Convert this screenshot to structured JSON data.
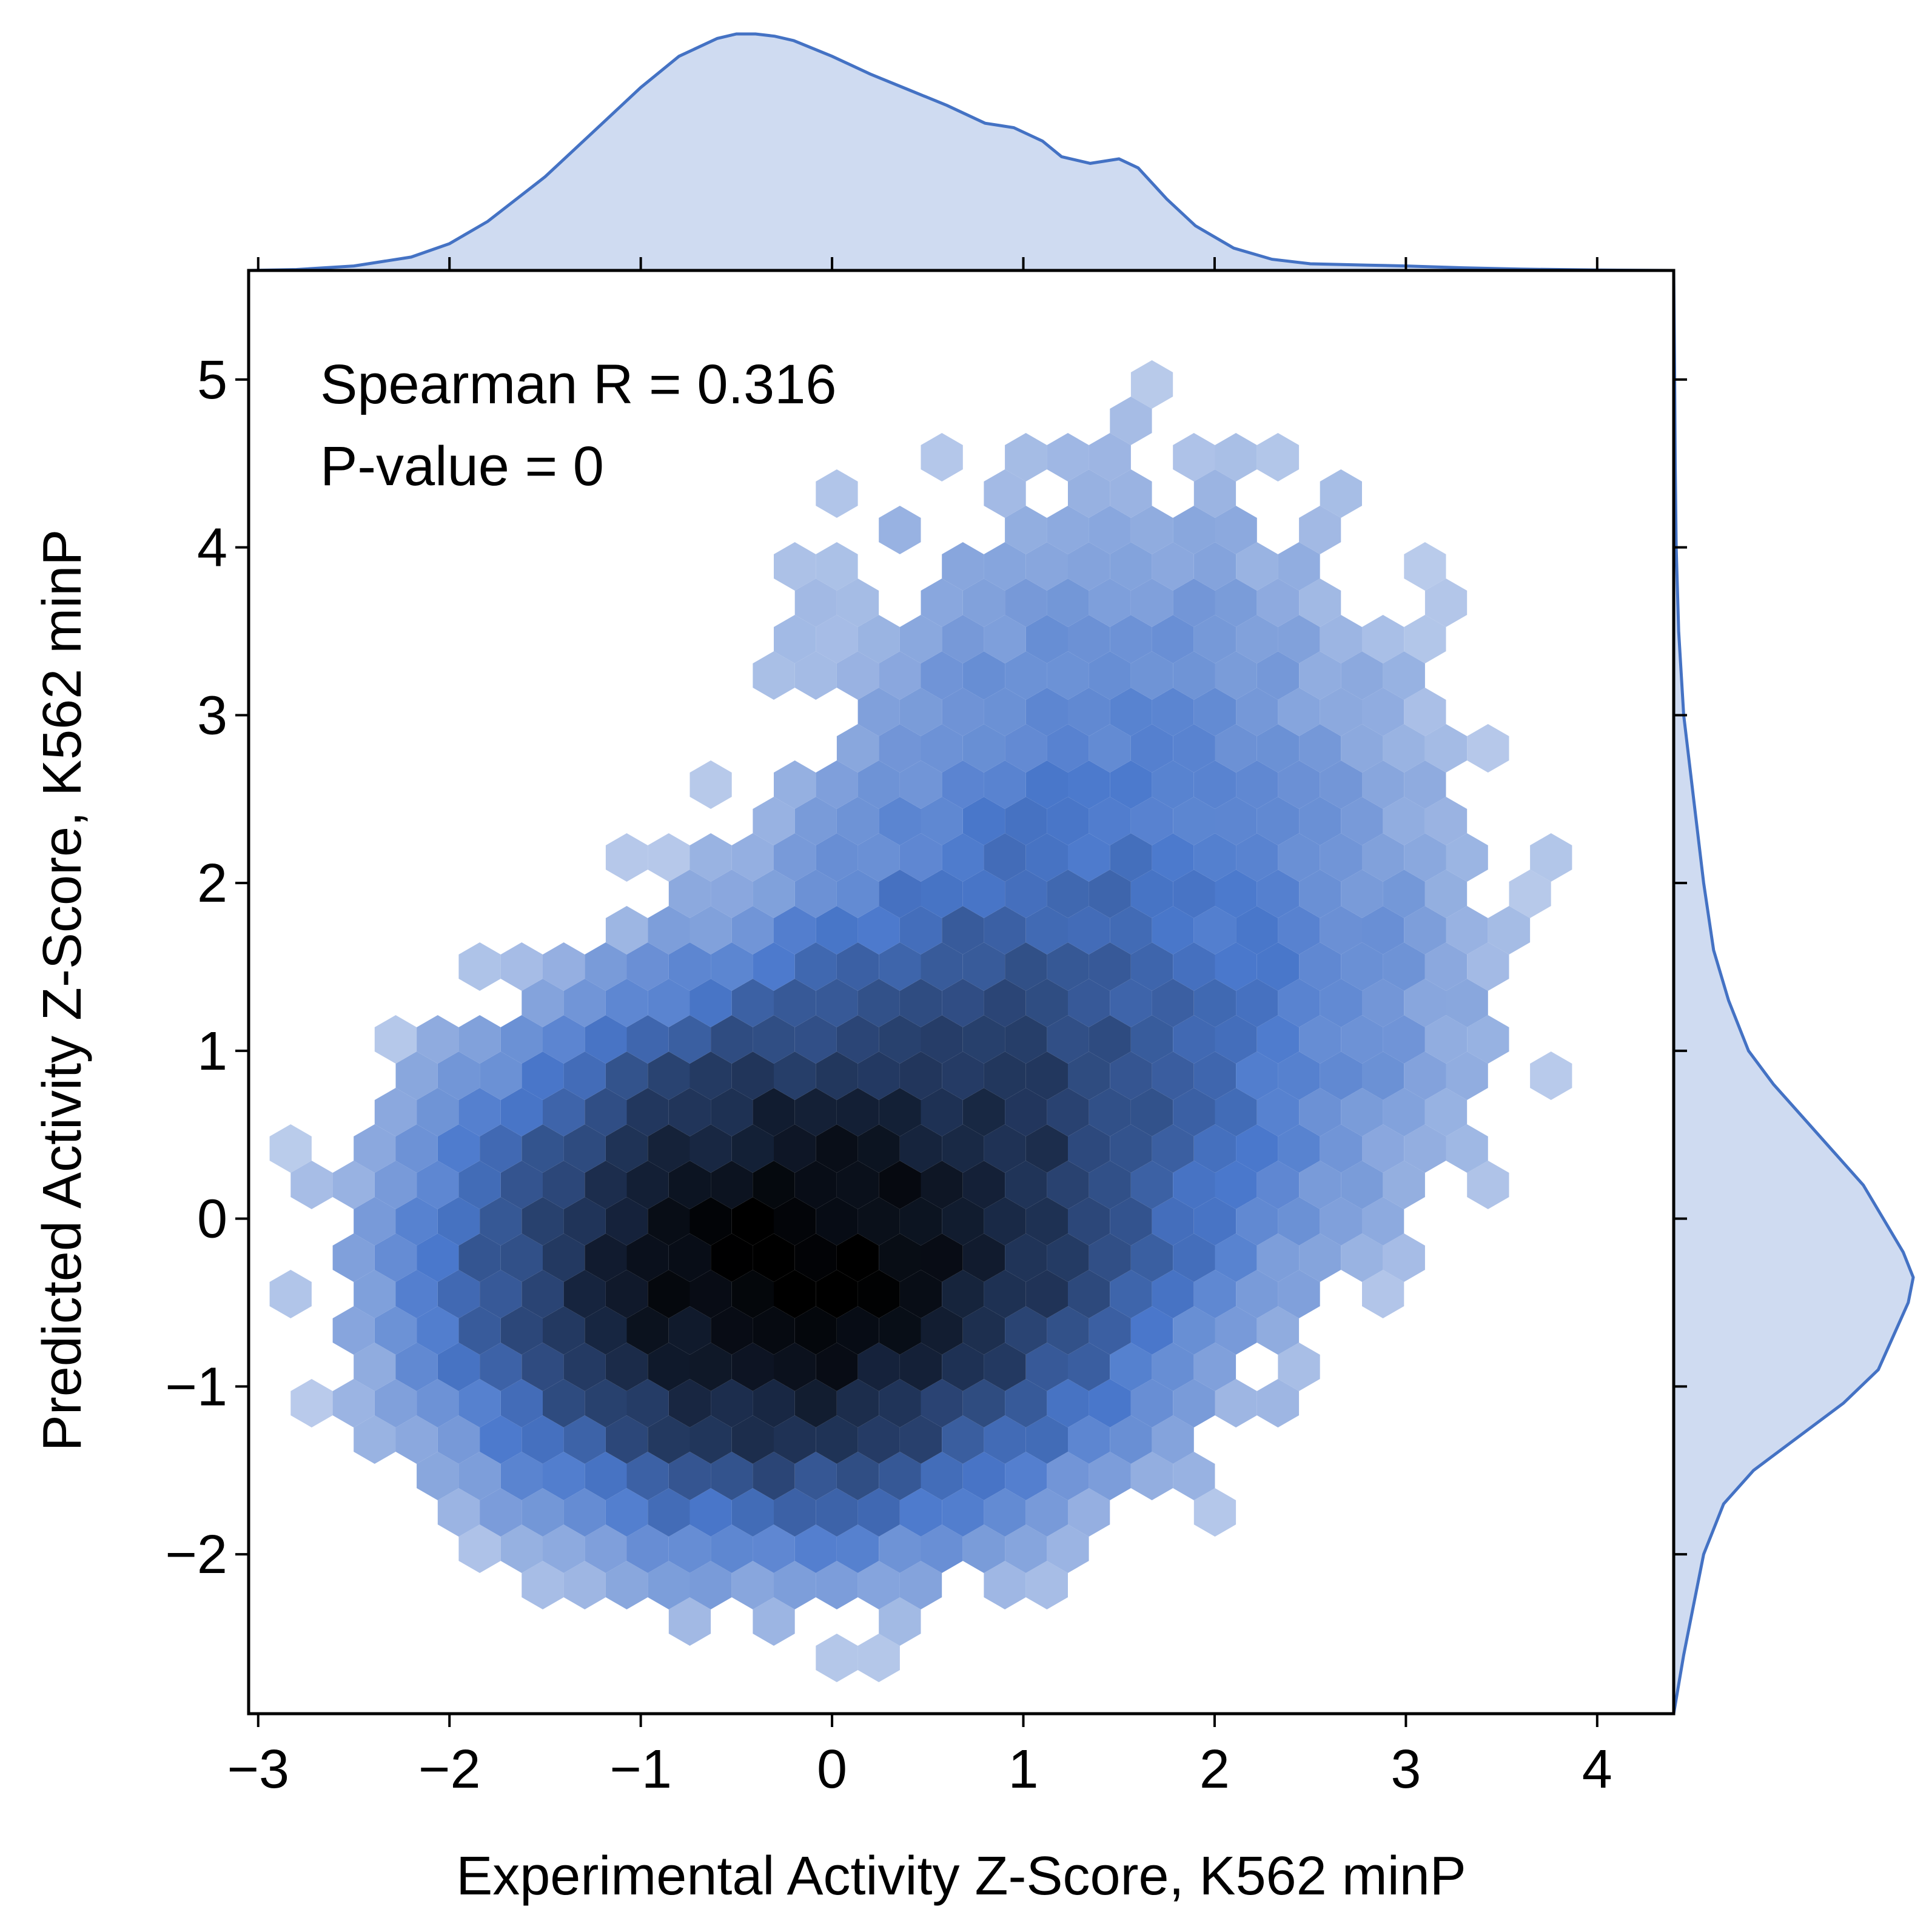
{
  "chart_data": {
    "type": "hexbin",
    "xlabel": "Experimental Activity Z-Score, K562 minP",
    "ylabel": "Predicted Activity Z-Score, K562 minP",
    "xlim": [
      -3.05,
      4.4
    ],
    "ylim": [
      -2.95,
      5.65
    ],
    "xticks": [
      -3,
      -2,
      -1,
      0,
      1,
      2,
      3,
      4
    ],
    "yticks": [
      -2,
      -1,
      0,
      1,
      2,
      3,
      4,
      5
    ],
    "xtick_labels": [
      "−3",
      "−2",
      "−1",
      "0",
      "1",
      "2",
      "3",
      "4"
    ],
    "ytick_labels": [
      "−2",
      "−1",
      "0",
      "1",
      "2",
      "3",
      "4",
      "5"
    ],
    "annotations": [
      "Spearman R = 0.316",
      "P-value = 0"
    ],
    "statistics": {
      "spearman_r": 0.316,
      "p_value": 0
    },
    "colormap": {
      "light": "#cfdbf1",
      "mid": "#4a78cc",
      "dark": "#000000"
    },
    "marginal_color": "#4472c4",
    "marginal_fill": "#cfdbf1",
    "grid": false,
    "density_components": [
      {
        "mx": -0.3,
        "my": -0.3,
        "sx": 0.85,
        "sy": 0.75,
        "w": 1.0
      },
      {
        "mx": 0.9,
        "my": 0.6,
        "sx": 0.8,
        "sy": 0.9,
        "w": 0.25
      },
      {
        "mx": 1.4,
        "my": 2.5,
        "sx": 0.9,
        "sy": 1.2,
        "w": 0.08
      },
      {
        "mx": 2.6,
        "my": 1.3,
        "sx": 0.6,
        "sy": 0.9,
        "w": 0.04
      }
    ],
    "marginal_x": {
      "x": [
        -3.05,
        -2.8,
        -2.5,
        -2.2,
        -2.0,
        -1.8,
        -1.5,
        -1.2,
        -1.0,
        -0.8,
        -0.6,
        -0.5,
        -0.4,
        -0.3,
        -0.2,
        0.0,
        0.2,
        0.4,
        0.6,
        0.8,
        0.95,
        1.1,
        1.2,
        1.35,
        1.5,
        1.6,
        1.75,
        1.9,
        2.1,
        2.3,
        2.5,
        2.8,
        3.0,
        3.3,
        3.6,
        4.0,
        4.4
      ],
      "density": [
        0.0,
        0.002,
        0.01,
        0.03,
        0.06,
        0.11,
        0.21,
        0.33,
        0.41,
        0.48,
        0.52,
        0.53,
        0.53,
        0.525,
        0.515,
        0.48,
        0.44,
        0.405,
        0.37,
        0.33,
        0.32,
        0.29,
        0.255,
        0.24,
        0.25,
        0.23,
        0.16,
        0.1,
        0.05,
        0.025,
        0.015,
        0.012,
        0.01,
        0.006,
        0.003,
        0.001,
        0.0
      ]
    },
    "marginal_y": {
      "y": [
        -2.95,
        -2.6,
        -2.3,
        -2.0,
        -1.7,
        -1.5,
        -1.3,
        -1.1,
        -0.9,
        -0.7,
        -0.5,
        -0.35,
        -0.2,
        0.0,
        0.2,
        0.4,
        0.6,
        0.8,
        1.0,
        1.3,
        1.6,
        2.0,
        2.5,
        3.0,
        3.5,
        4.0,
        4.5,
        5.0,
        5.65
      ],
      "density": [
        0.0,
        0.02,
        0.04,
        0.06,
        0.1,
        0.16,
        0.25,
        0.34,
        0.41,
        0.44,
        0.47,
        0.48,
        0.46,
        0.42,
        0.38,
        0.32,
        0.26,
        0.2,
        0.15,
        0.11,
        0.08,
        0.06,
        0.04,
        0.02,
        0.01,
        0.005,
        0.003,
        0.002,
        0.0
      ]
    }
  }
}
